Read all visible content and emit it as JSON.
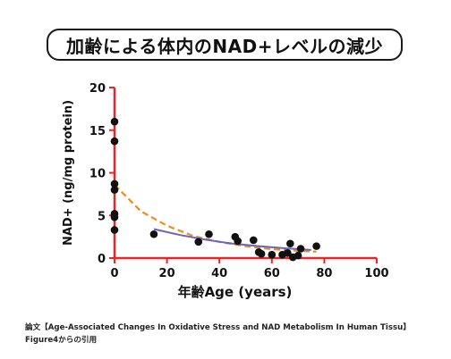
{
  "title": "加齢による体内のNAD+レベルの減少",
  "caption": {
    "line1": "論文【Age-Associated Changes In Oxidative Stress and NAD Metabolism In Human Tissu】",
    "line2": "Figure4からの引用"
  },
  "colors": {
    "axis": "#e8262a",
    "points": "#111111",
    "fit_dashed": "#f08c1e",
    "fit_solid": "#6d63b8"
  },
  "chart_data": {
    "type": "scatter",
    "xlabel": "年齢Age (years)",
    "ylabel": "NAD+ (ng/mg protein)",
    "xlim": [
      0,
      100
    ],
    "ylim": [
      0,
      20
    ],
    "xticks": [
      0,
      20,
      40,
      60,
      80,
      100
    ],
    "yticks": [
      0,
      5,
      10,
      15,
      20
    ],
    "grid": false,
    "points": [
      {
        "x": 0,
        "y": 16.0
      },
      {
        "x": 0,
        "y": 13.7
      },
      {
        "x": 0,
        "y": 8.7
      },
      {
        "x": 0,
        "y": 8.0
      },
      {
        "x": 0,
        "y": 5.2
      },
      {
        "x": 0,
        "y": 4.8
      },
      {
        "x": 0,
        "y": 3.3
      },
      {
        "x": 15,
        "y": 2.8
      },
      {
        "x": 32,
        "y": 1.9
      },
      {
        "x": 36,
        "y": 2.8
      },
      {
        "x": 46,
        "y": 2.5
      },
      {
        "x": 47,
        "y": 2.0
      },
      {
        "x": 53,
        "y": 2.1
      },
      {
        "x": 55,
        "y": 0.7
      },
      {
        "x": 56,
        "y": 0.5
      },
      {
        "x": 60,
        "y": 0.4
      },
      {
        "x": 64,
        "y": 0.4
      },
      {
        "x": 66,
        "y": 0.6
      },
      {
        "x": 67,
        "y": 1.7
      },
      {
        "x": 68,
        "y": 0.1
      },
      {
        "x": 70,
        "y": 0.3
      },
      {
        "x": 71,
        "y": 1.1
      },
      {
        "x": 77,
        "y": 1.4
      }
    ],
    "series": [
      {
        "style": "dashed",
        "x": [
          0,
          10,
          20,
          30,
          40,
          50,
          60,
          70,
          77
        ],
        "y": [
          8.6,
          5.5,
          3.8,
          2.6,
          1.9,
          1.4,
          1.05,
          0.85,
          0.75
        ]
      },
      {
        "style": "solid",
        "x": [
          15,
          25,
          35,
          45,
          55,
          65,
          75
        ],
        "y": [
          3.4,
          2.7,
          2.15,
          1.7,
          1.4,
          1.15,
          0.95
        ]
      }
    ]
  }
}
